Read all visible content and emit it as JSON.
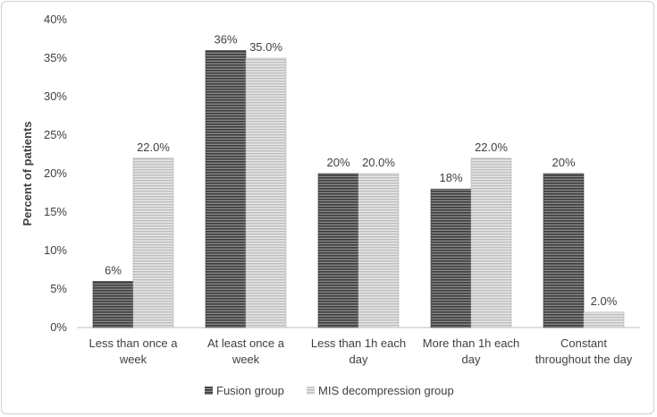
{
  "chart_data": {
    "type": "bar",
    "title": "",
    "xlabel": "",
    "ylabel": "Percent of patients",
    "ylim": [
      0,
      40
    ],
    "yticks": [
      "0%",
      "5%",
      "10%",
      "15%",
      "20%",
      "25%",
      "30%",
      "35%",
      "40%"
    ],
    "categories": [
      [
        "Less than once a",
        "week"
      ],
      [
        "At least once a",
        "week"
      ],
      [
        "Less than 1h each",
        "day"
      ],
      [
        "More than 1h each",
        "day"
      ],
      [
        "Constant",
        "throughout the day"
      ]
    ],
    "series": [
      {
        "name": "Fusion group",
        "values": [
          6,
          36,
          20,
          18,
          20
        ],
        "labels": [
          "6%",
          "36%",
          "20%",
          "18%",
          "20%"
        ],
        "color": "#5a5a5a",
        "pattern": "dark-horizontal-stripes"
      },
      {
        "name": "MIS decompression group",
        "values": [
          22,
          35,
          20,
          22,
          2
        ],
        "labels": [
          "22.0%",
          "35.0%",
          "20.0%",
          "22.0%",
          "2.0%"
        ],
        "color": "#c8c8c8",
        "pattern": "light-horizontal-stripes"
      }
    ],
    "grid": false,
    "legend": "bottom"
  }
}
